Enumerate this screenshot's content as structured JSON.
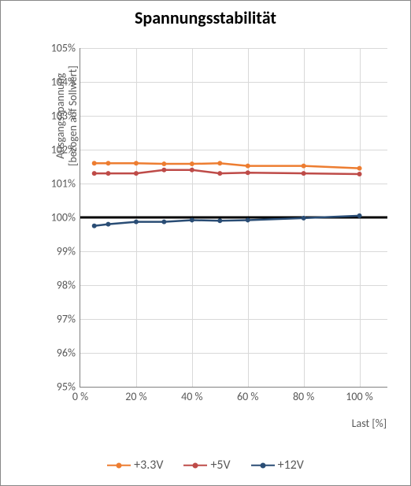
{
  "chart": {
    "type": "line",
    "title": "Spannungsstabilität",
    "y_axis_label_line1": "Ausgangsspannung",
    "y_axis_label_line2": "[bezogen auf Sollwert]",
    "x_axis_label": "Last [%]",
    "background_color": "#ffffff",
    "border_color": "#888888",
    "grid_color": "#d9d9d9",
    "axis_color": "#808080",
    "tick_font_color": "#595959",
    "title_font_color": "#000000",
    "title_fontsize": 22,
    "label_fontsize": 14,
    "tick_fontsize": 14,
    "legend_fontsize": 16,
    "y": {
      "min": 95,
      "max": 105,
      "step": 1,
      "ticks": [
        95,
        96,
        97,
        98,
        99,
        100,
        101,
        102,
        103,
        104,
        105
      ],
      "tick_labels": [
        "95%",
        "96%",
        "97%",
        "98%",
        "99%",
        "100%",
        "101%",
        "102%",
        "103%",
        "104%",
        "105%"
      ]
    },
    "x": {
      "min": 0,
      "max": 110,
      "step": 20,
      "ticks": [
        0,
        20,
        40,
        60,
        80,
        100
      ],
      "tick_labels": [
        "0 %",
        "20 %",
        "40 %",
        "60 %",
        "80 %",
        "100 %"
      ]
    },
    "x_values": [
      5,
      10,
      20,
      30,
      40,
      50,
      60,
      80,
      100
    ],
    "reference_line": {
      "value": 100,
      "color": "#000000",
      "width": 3
    },
    "series": [
      {
        "name": "+3.3V",
        "color": "#ed7d31",
        "marker": "circle",
        "marker_size": 6,
        "line_width": 2.5,
        "values": [
          101.6,
          101.6,
          101.6,
          101.58,
          101.58,
          101.6,
          101.52,
          101.52,
          101.45
        ]
      },
      {
        "name": "+5V",
        "color": "#be4b48",
        "marker": "circle",
        "marker_size": 6,
        "line_width": 2.5,
        "values": [
          101.3,
          101.3,
          101.3,
          101.4,
          101.4,
          101.3,
          101.32,
          101.3,
          101.28
        ]
      },
      {
        "name": "+12V",
        "color": "#2a4d75",
        "marker": "circle",
        "marker_size": 6,
        "line_width": 2.5,
        "values": [
          99.75,
          99.8,
          99.87,
          99.87,
          99.92,
          99.9,
          99.92,
          99.98,
          100.05
        ]
      }
    ]
  }
}
